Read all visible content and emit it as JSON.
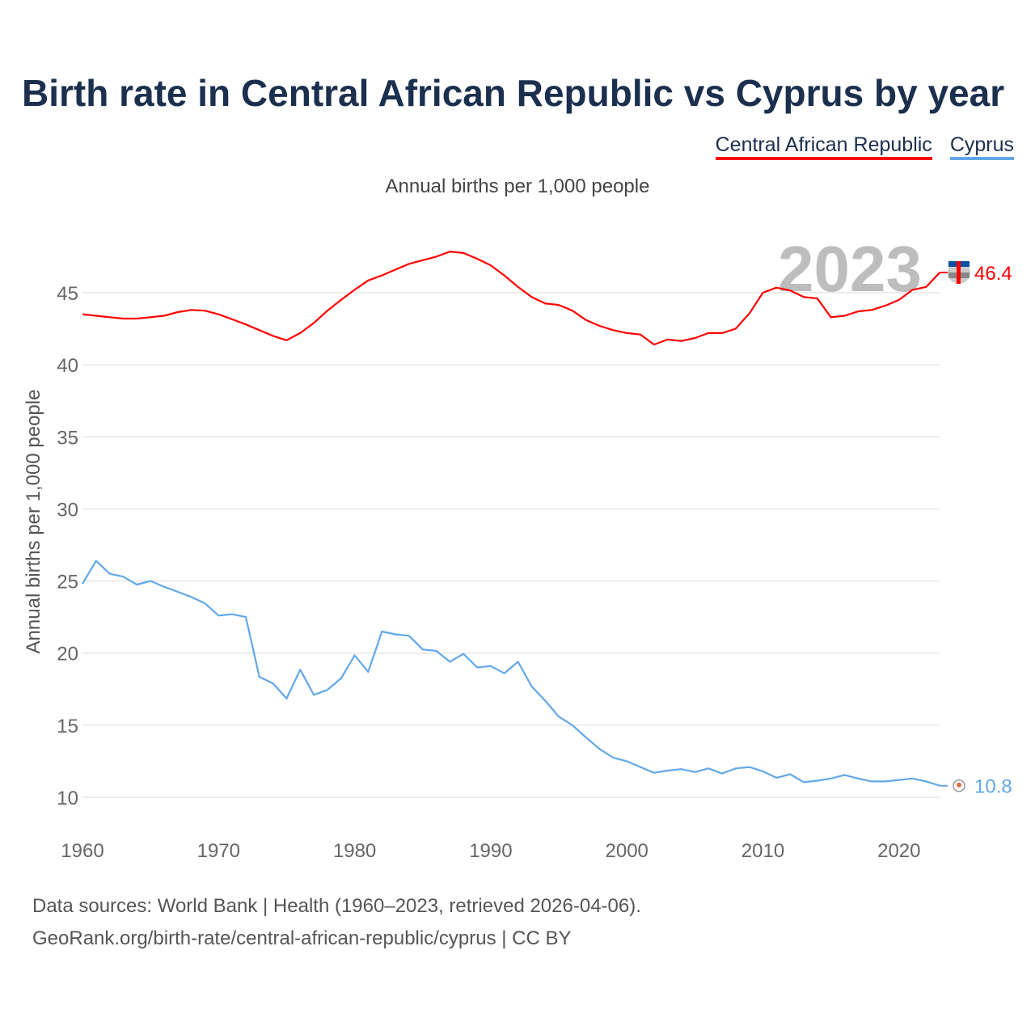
{
  "title": "Birth rate in Central African Republic vs Cyprus by year",
  "legend": [
    "Central African Republic",
    "Cyprus"
  ],
  "subtitle": "Annual births per 1,000 people",
  "footer": {
    "line1": "Data sources: World Bank | Health (1960–2023, retrieved 2026-04-06).",
    "line2": "GeoRank.org/birth-rate/central-african-republic/cyprus | CC BY"
  },
  "colors": {
    "car": "#ff0000",
    "cyprus": "#62a8e8",
    "title": "#1b2f4e"
  },
  "chart_data": {
    "type": "line",
    "title": "Birth rate in Central African Republic vs Cyprus by year",
    "xlabel": "",
    "ylabel": "Annual births per 1,000 people",
    "xlim": [
      1960,
      2023
    ],
    "ylim": [
      8,
      49
    ],
    "xticks": [
      1960,
      1970,
      1980,
      1990,
      2000,
      2010,
      2020
    ],
    "yticks": [
      10,
      15,
      20,
      25,
      30,
      35,
      40,
      45
    ],
    "year_label": "2023",
    "x_start": 1960,
    "series": [
      {
        "name": "Central African Republic",
        "end_label": "46.4",
        "values": [
          43.5,
          43.4,
          43.3,
          43.2,
          43.2,
          43.3,
          43.4,
          43.65,
          43.8,
          43.75,
          43.5,
          43.15,
          42.8,
          42.4,
          42.0,
          41.7,
          42.2,
          42.9,
          43.75,
          44.5,
          45.2,
          45.85,
          46.2,
          46.6,
          47.0,
          47.25,
          47.5,
          47.85,
          47.75,
          47.35,
          46.9,
          46.2,
          45.4,
          44.7,
          44.25,
          44.15,
          43.75,
          43.1,
          42.7,
          42.4,
          42.2,
          42.1,
          41.4,
          41.75,
          41.65,
          41.85,
          42.2,
          42.2,
          42.5,
          43.55,
          45.0,
          45.35,
          45.15,
          44.7,
          44.6,
          43.3,
          43.4,
          43.7,
          43.8,
          44.1,
          44.5,
          45.2,
          45.4,
          46.4
        ]
      },
      {
        "name": "Cyprus",
        "end_label": "10.8",
        "values": [
          24.8,
          26.4,
          25.5,
          25.3,
          24.75,
          25.0,
          24.6,
          24.25,
          23.9,
          23.45,
          22.6,
          22.7,
          22.5,
          18.35,
          17.9,
          16.85,
          18.85,
          17.1,
          17.45,
          18.25,
          19.85,
          18.7,
          21.5,
          21.3,
          21.2,
          20.25,
          20.15,
          19.4,
          19.95,
          19.0,
          19.1,
          18.6,
          19.4,
          17.7,
          16.7,
          15.6,
          15.0,
          14.15,
          13.35,
          12.75,
          12.5,
          12.1,
          11.7,
          11.85,
          11.95,
          11.75,
          12.0,
          11.65,
          12.0,
          12.1,
          11.8,
          11.35,
          11.6,
          11.05,
          11.15,
          11.3,
          11.55,
          11.3,
          11.1,
          11.1,
          11.2,
          11.3,
          11.1,
          10.8
        ]
      }
    ]
  }
}
